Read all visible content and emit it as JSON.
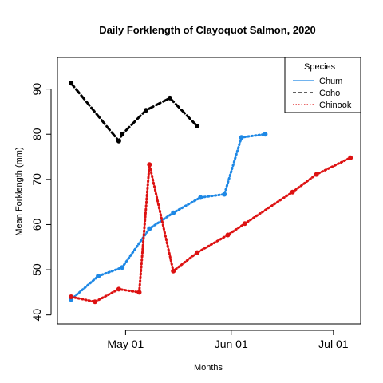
{
  "chart_data": {
    "type": "line",
    "title": "Daily Forklength of Clayoquot Salmon, 2020",
    "xlabel": "Months",
    "ylabel": "Mean Forklength (mm)",
    "x_range": [
      "2020-04-11",
      "2020-07-09"
    ],
    "ylim": [
      38,
      97
    ],
    "x_ticks": [
      {
        "date": "2020-05-01",
        "label": "May 01"
      },
      {
        "date": "2020-06-01",
        "label": "Jun 01"
      },
      {
        "date": "2020-07-01",
        "label": "Jul 01"
      }
    ],
    "y_ticks": [
      40,
      50,
      60,
      70,
      80,
      90
    ],
    "grid": false,
    "legend": {
      "title": "Species",
      "position": "top-right"
    },
    "series": [
      {
        "name": "Chum",
        "color": "#1e88e5",
        "line_style": "dotted",
        "legend_line_style": "solid",
        "points": [
          {
            "x": "2020-04-15",
            "y": 43.4
          },
          {
            "x": "2020-04-23",
            "y": 48.6
          },
          {
            "x": "2020-04-23",
            "y": 48.6
          },
          {
            "x": "2020-04-30",
            "y": 50.5
          },
          {
            "x": "2020-05-08",
            "y": 59.1
          },
          {
            "x": "2020-05-15",
            "y": 62.6
          },
          {
            "x": "2020-05-23",
            "y": 66.0
          },
          {
            "x": "2020-05-30",
            "y": 66.7
          },
          {
            "x": "2020-06-04",
            "y": 79.3
          },
          {
            "x": "2020-06-11",
            "y": 80.0
          }
        ]
      },
      {
        "name": "Coho",
        "color": "#000000",
        "line_style": "dashed",
        "legend_line_style": "dashed",
        "points": [
          {
            "x": "2020-04-15",
            "y": 91.3
          },
          {
            "x": "2020-04-29",
            "y": 78.5
          },
          {
            "x": "2020-04-30",
            "y": 80.0
          },
          {
            "x": "2020-05-07",
            "y": 85.3
          },
          {
            "x": "2020-05-14",
            "y": 88.0
          },
          {
            "x": "2020-05-22",
            "y": 81.8
          }
        ]
      },
      {
        "name": "Chinook",
        "color": "#dd1111",
        "line_style": "dotted",
        "legend_line_style": "dotted",
        "points": [
          {
            "x": "2020-04-15",
            "y": 44.0
          },
          {
            "x": "2020-04-22",
            "y": 42.9
          },
          {
            "x": "2020-04-29",
            "y": 45.7
          },
          {
            "x": "2020-05-05",
            "y": 45.0
          },
          {
            "x": "2020-05-08",
            "y": 73.3
          },
          {
            "x": "2020-05-15",
            "y": 49.7
          },
          {
            "x": "2020-05-22",
            "y": 53.8
          },
          {
            "x": "2020-05-31",
            "y": 57.7
          },
          {
            "x": "2020-06-05",
            "y": 60.2
          },
          {
            "x": "2020-06-19",
            "y": 67.2
          },
          {
            "x": "2020-06-26",
            "y": 71.1
          },
          {
            "x": "2020-07-06",
            "y": 74.8
          }
        ]
      }
    ]
  }
}
